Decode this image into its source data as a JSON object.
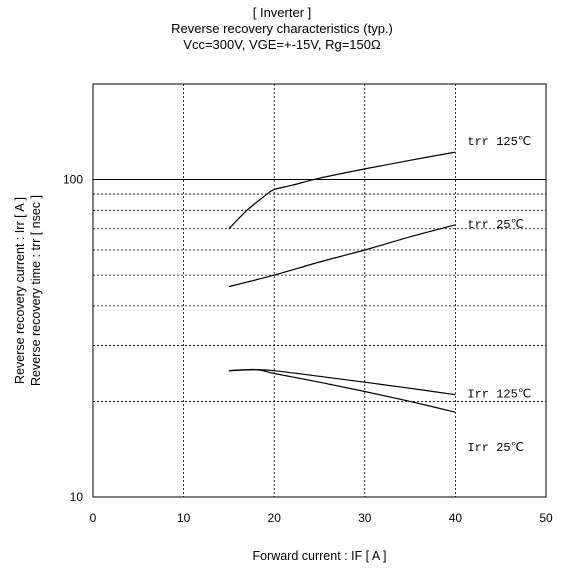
{
  "chart_data": {
    "type": "line",
    "title": "[ Inverter ]",
    "subtitle": "Reverse recovery characteristics  (typ.)",
    "conditions": "Vcc=300V, VGE=+-15V, Rg=150Ω",
    "xlabel": "Forward current  :  IF  [ A ]",
    "ylabel": "Reverse recovery current  :  Irr  [ A ]",
    "ylabel2": "Reverse recovery time  :  trr  [ nsec ]",
    "xlim": [
      0,
      50
    ],
    "ylim": [
      10,
      200
    ],
    "yscale": "log",
    "grid": true,
    "x_ticks": [
      0,
      10,
      20,
      30,
      40,
      50
    ],
    "y_tick_labels": [
      10,
      100
    ],
    "series": [
      {
        "name": "trr 125℃",
        "x": [
          15,
          17,
          19,
          20,
          22,
          25,
          30,
          35,
          40
        ],
        "y": [
          70,
          80,
          89,
          93,
          96,
          101,
          108,
          115,
          122
        ]
      },
      {
        "name": "trr 25℃",
        "x": [
          15,
          20,
          25,
          30,
          35,
          40
        ],
        "y": [
          46,
          50,
          55,
          60,
          66,
          72
        ]
      },
      {
        "name": "Irr 125℃",
        "x": [
          15,
          18,
          20,
          25,
          30,
          35,
          40
        ],
        "y": [
          25,
          25.2,
          25,
          24,
          23,
          22,
          21
        ]
      },
      {
        "name": "Irr 25℃",
        "x": [
          15,
          18,
          20,
          25,
          30,
          35,
          40
        ],
        "y": [
          25,
          25.2,
          24.5,
          23,
          21.5,
          20,
          18.5
        ]
      }
    ]
  }
}
